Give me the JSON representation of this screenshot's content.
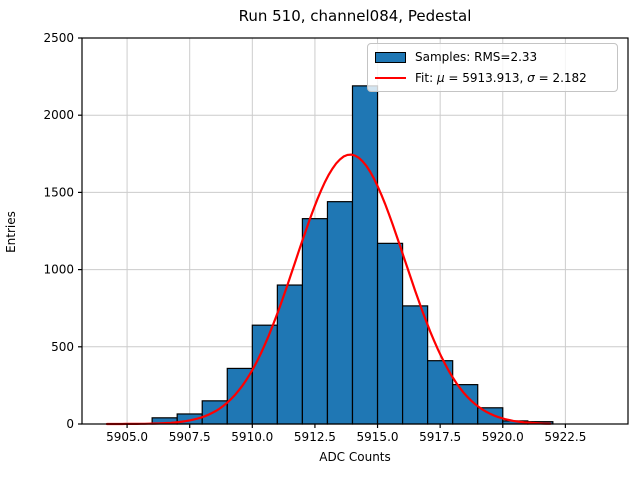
{
  "chart_data": {
    "type": "bar",
    "subtype": "histogram-with-gaussian-fit",
    "title": "Run 510, channel084, Pedestal",
    "xlabel": "ADC Counts",
    "ylabel": "Entries",
    "xlim": [
      5903.2,
      5925.0
    ],
    "ylim": [
      0,
      2500
    ],
    "grid": true,
    "grid_color": "#cccccc",
    "x_tick_values": [
      5905.0,
      5907.5,
      5910.0,
      5912.5,
      5915.0,
      5917.5,
      5920.0,
      5922.5
    ],
    "x_tick_labels": [
      "5905.0",
      "5907.5",
      "5910.0",
      "5912.5",
      "5915.0",
      "5917.5",
      "5920.0",
      "5922.5"
    ],
    "y_tick_values": [
      0,
      500,
      1000,
      1500,
      2000,
      2500
    ],
    "y_tick_labels": [
      "0",
      "500",
      "1000",
      "1500",
      "2000",
      "2500"
    ],
    "bin_width": 1,
    "bin_left_edges": [
      5906,
      5907,
      5908,
      5909,
      5910,
      5911,
      5912,
      5913,
      5914,
      5915,
      5916,
      5917,
      5918,
      5919,
      5920,
      5921
    ],
    "counts": [
      40,
      65,
      150,
      360,
      640,
      900,
      1330,
      1440,
      2190,
      1170,
      765,
      410,
      255,
      105,
      20,
      15
    ],
    "bar_color": "#1f77b4",
    "bar_edge_color": "#000000",
    "fit": {
      "mu": 5913.913,
      "sigma": 2.182,
      "amplitude": 1745,
      "color": "#ff0000",
      "x_range": [
        5904.2,
        5922.0
      ]
    },
    "legend": {
      "position": "upper-right",
      "samples_entry": {
        "label": "Samples: RMS=2.33",
        "swatch_color": "#1f77b4"
      },
      "fit_entry": {
        "prefix": "Fit: ",
        "mu_symbol": "μ",
        "mid": " = 5913.913, ",
        "sigma_symbol": "σ",
        "suffix": " = 2.182",
        "line_color": "#ff0000"
      }
    }
  }
}
